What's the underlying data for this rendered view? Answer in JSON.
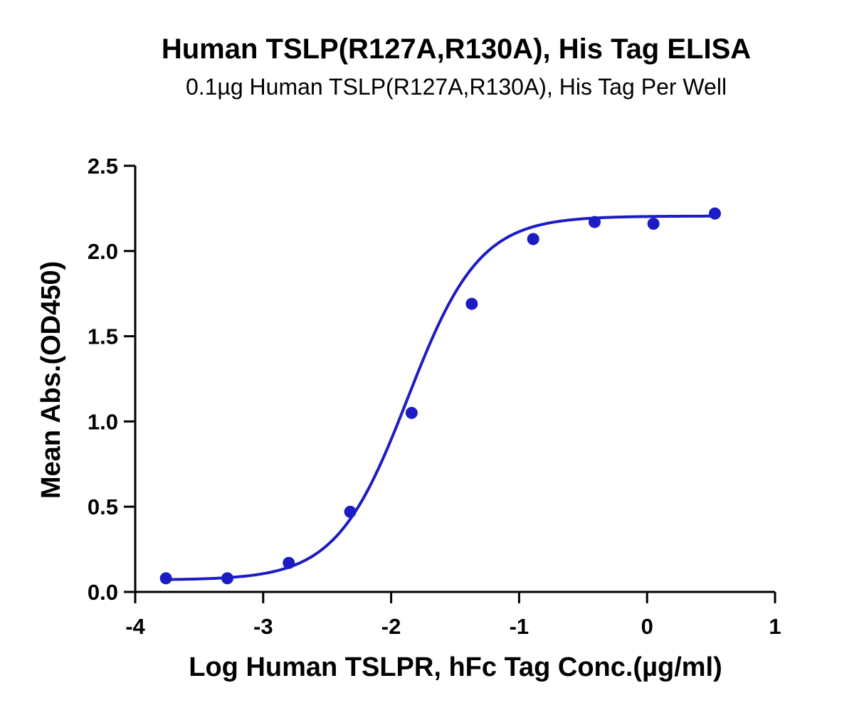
{
  "chart_data": {
    "type": "scatter",
    "title": "Human TSLP(R127A,R130A), His Tag ELISA",
    "subtitle": "0.1µg Human TSLP(R127A,R130A), His Tag Per Well",
    "xlabel": "Log Human TSLPR, hFc Tag Conc.(µg/ml)",
    "ylabel": "Mean Abs.(OD450)",
    "xlim": [
      -4,
      1
    ],
    "ylim": [
      0,
      2.5
    ],
    "xticks": [
      -4,
      -3,
      -2,
      -1,
      0,
      1
    ],
    "xtick_labels": [
      "-4",
      "-3",
      "-2",
      "-1",
      "0",
      "1"
    ],
    "yticks": [
      0,
      0.5,
      1,
      1.5,
      2,
      2.5
    ],
    "ytick_labels": [
      "0.0",
      "0.5",
      "1.0",
      "1.5",
      "2.0",
      "2.5"
    ],
    "grid": false,
    "colors": {
      "series": "#1c1cc4",
      "axis": "#000000"
    },
    "series": [
      {
        "x": [
          -3.76,
          -3.28,
          -2.8,
          -2.32,
          -1.84,
          -1.37,
          -0.89,
          -0.41,
          0.05,
          0.53
        ],
        "y": [
          0.08,
          0.08,
          0.17,
          0.47,
          1.05,
          1.69,
          2.07,
          2.17,
          2.16,
          2.22
        ],
        "fit": "4PL sigmoid"
      }
    ]
  }
}
